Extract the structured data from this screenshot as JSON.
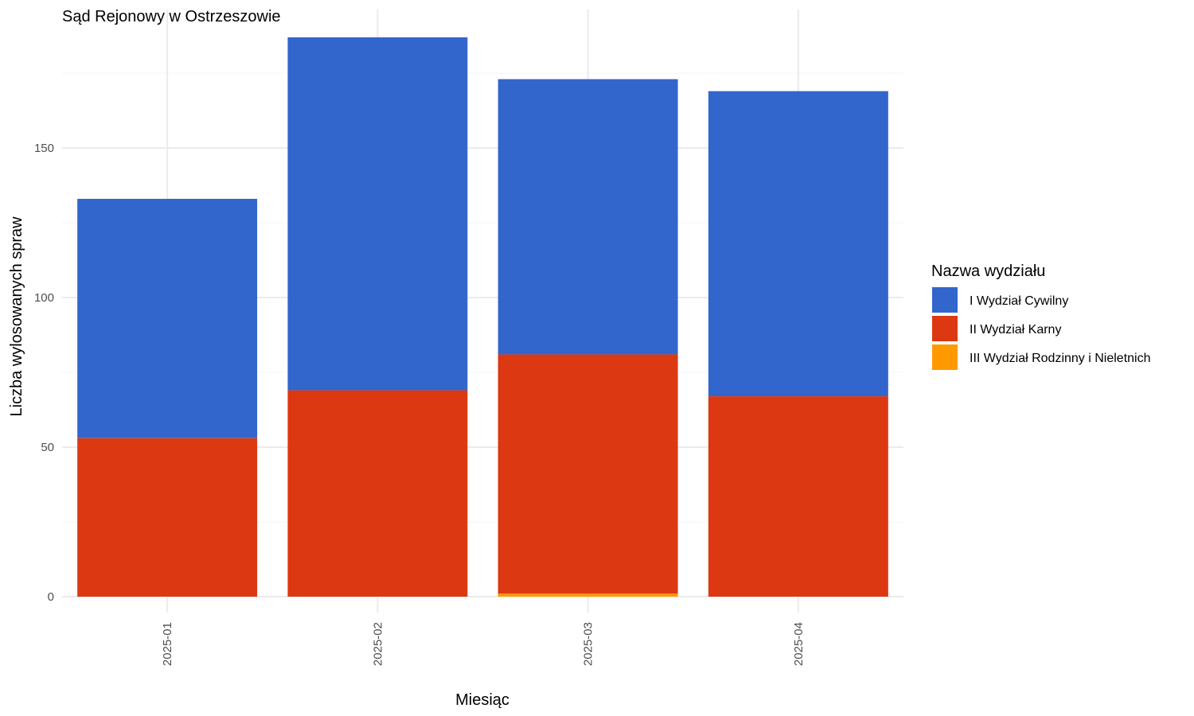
{
  "chart_data": {
    "type": "bar",
    "stacked": true,
    "title": "Sąd Rejonowy w Ostrzeszowie",
    "xlabel": "Miesiąc",
    "ylabel": "Liczba wylosowanych spraw",
    "categories": [
      "2025-01",
      "2025-02",
      "2025-03",
      "2025-04"
    ],
    "ylim": [
      0,
      196
    ],
    "yticks": [
      0,
      50,
      100,
      150
    ],
    "ytick_labels": [
      "0",
      "50",
      "100",
      "150"
    ],
    "grid": true,
    "legend": {
      "title": "Nazwa wydziału",
      "position": "right"
    },
    "series": [
      {
        "name": "III Wydział Rodzinny i Nieletnich",
        "color": "#FF9900",
        "values": [
          0,
          0,
          1,
          0
        ]
      },
      {
        "name": "II Wydział Karny",
        "color": "#DC3912",
        "values": [
          53,
          69,
          80,
          67
        ]
      },
      {
        "name": "I Wydział Cywilny",
        "color": "#3366CC",
        "values": [
          80,
          118,
          92,
          102
        ]
      }
    ],
    "legend_order": [
      2,
      1,
      0
    ]
  }
}
